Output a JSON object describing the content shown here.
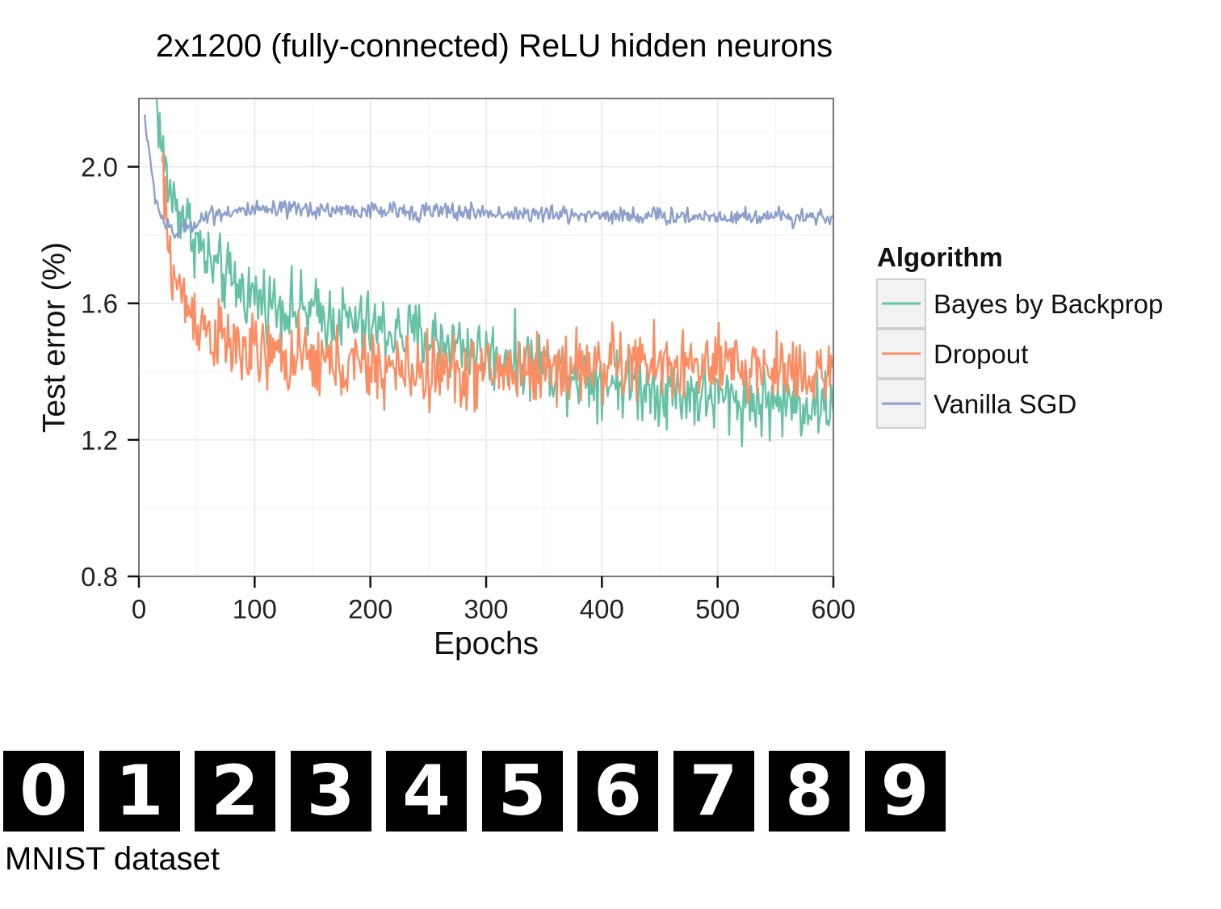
{
  "chart_data": {
    "type": "line",
    "title": "2x1200 (fully-connected) ReLU hidden neurons",
    "xlabel": "Epochs",
    "ylabel": "Test error (%)",
    "xlim": [
      0,
      600
    ],
    "ylim": [
      0.8,
      2.2
    ],
    "xticks": [
      0,
      100,
      200,
      300,
      400,
      500,
      600
    ],
    "yticks": [
      0.8,
      1.2,
      1.6,
      2.0
    ],
    "ytick_labels": [
      "0.8",
      "1.2",
      "1.6",
      "2.0"
    ],
    "grid": true,
    "legend": {
      "title": "Algorithm",
      "placement": "right"
    },
    "series": [
      {
        "name": "Vanilla SGD",
        "color": "#8DA0CB",
        "x": [
          5,
          10,
          15,
          20,
          25,
          30,
          40,
          50,
          60,
          80,
          100,
          150,
          200,
          250,
          300,
          350,
          400,
          450,
          500,
          550,
          600
        ],
        "y": [
          2.15,
          2.0,
          1.9,
          1.85,
          1.82,
          1.8,
          1.82,
          1.84,
          1.86,
          1.87,
          1.87,
          1.875,
          1.87,
          1.87,
          1.865,
          1.86,
          1.86,
          1.855,
          1.855,
          1.855,
          1.855
        ]
      },
      {
        "name": "Bayes by Backprop",
        "color": "#66C2A5",
        "x": [
          15,
          20,
          25,
          30,
          40,
          50,
          60,
          80,
          100,
          125,
          150,
          175,
          200,
          225,
          250,
          275,
          300,
          350,
          400,
          450,
          500,
          550,
          600
        ],
        "y": [
          2.2,
          2.05,
          1.95,
          1.9,
          1.85,
          1.78,
          1.72,
          1.66,
          1.62,
          1.59,
          1.57,
          1.55,
          1.53,
          1.51,
          1.5,
          1.48,
          1.45,
          1.42,
          1.38,
          1.35,
          1.32,
          1.31,
          1.3
        ]
      },
      {
        "name": "Dropout",
        "color": "#FC8D62",
        "x": [
          20,
          25,
          30,
          40,
          50,
          60,
          80,
          100,
          125,
          150,
          175,
          200,
          250,
          300,
          350,
          400,
          450,
          500,
          550,
          600
        ],
        "y": [
          2.0,
          1.78,
          1.68,
          1.6,
          1.56,
          1.52,
          1.47,
          1.45,
          1.44,
          1.43,
          1.42,
          1.41,
          1.4,
          1.4,
          1.41,
          1.42,
          1.42,
          1.41,
          1.41,
          1.4
        ]
      }
    ]
  },
  "digits": {
    "items": [
      "0",
      "1",
      "2",
      "3",
      "4",
      "5",
      "6",
      "7",
      "8",
      "9"
    ],
    "caption": "MNIST dataset"
  }
}
